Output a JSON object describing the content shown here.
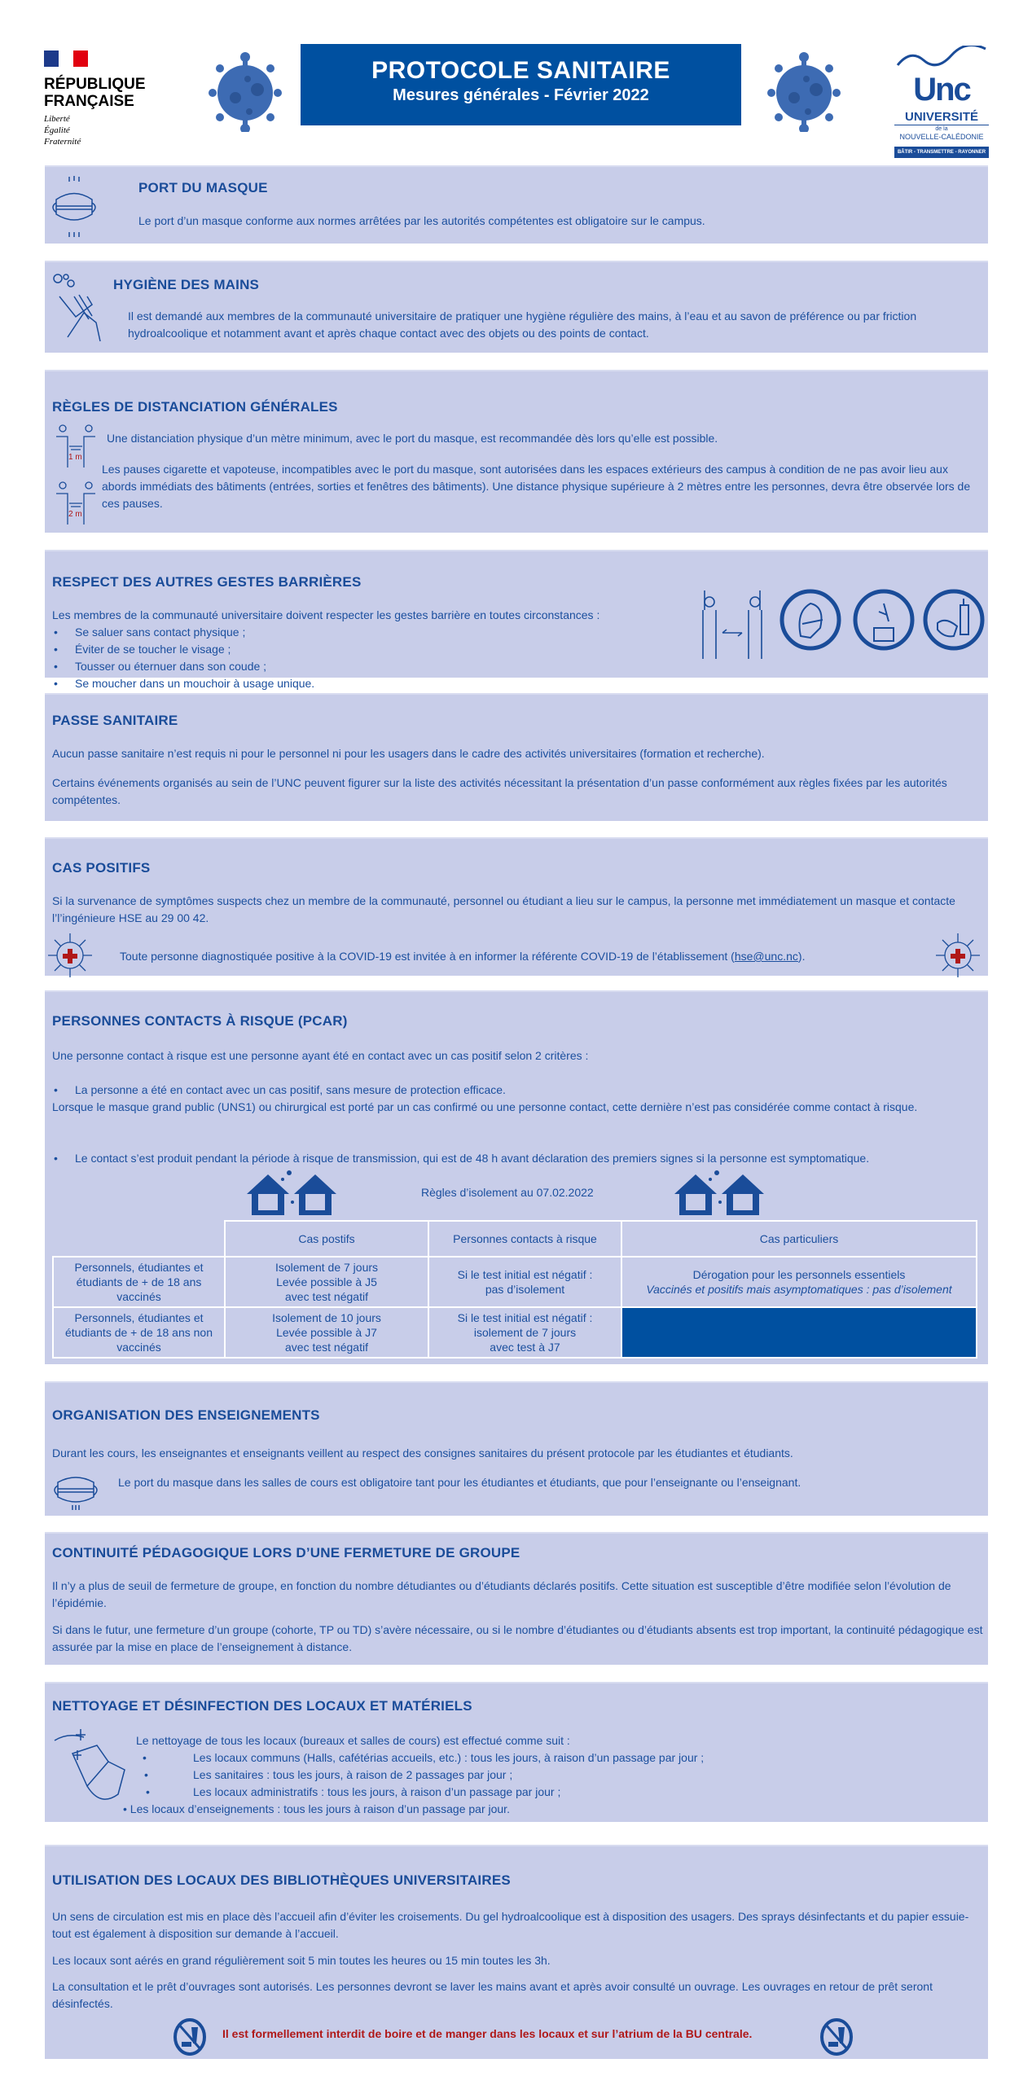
{
  "header": {
    "rf_title_line1": "RÉPUBLIQUE",
    "rf_title_line2": "FRANÇAISE",
    "rf_motto": [
      "Liberté",
      "Égalité",
      "Fraternité"
    ],
    "title": "PROTOCOLE SANITAIRE",
    "subtitle": "Mesures générales - Février 2022",
    "unc_logo": {
      "acronym": "Unc",
      "name": "UNIVERSITÉ",
      "de_la": "de la",
      "region": "NOUVELLE-CALÉDONIE",
      "tagline": "BÂTIR - TRANSMETTRE - RAYONNER"
    }
  },
  "colors": {
    "banner": "#0050a0",
    "section_bg": "#c8cde9",
    "text": "#1b4f9e",
    "alert": "#b01818"
  },
  "masque": {
    "title": "PORT DU MASQUE",
    "text": "Le port d’un masque conforme aux normes arrêtées par les autorités compétentes est obligatoire sur le campus."
  },
  "hygiene": {
    "title": "HYGIÈNE DES MAINS",
    "text": "Il est demandé aux membres de la communauté universitaire de pratiquer une hygiène régulière des mains, à l’eau et au savon de préférence ou par friction hydroalcoolique et notamment avant et après chaque contact avec des objets ou des points de contact."
  },
  "distanciation": {
    "title": "RÈGLES DE DISTANCIATION GÉNÉRALES",
    "label_1m": "1 m",
    "label_2m": "2 m",
    "text1": "Une distanciation physique d’un mètre minimum, avec le port du masque, est recommandée dès lors qu’elle est possible.",
    "text2": "Les pauses cigarette et vapoteuse, incompatibles avec le port du masque, sont autorisées dans les espaces extérieurs des campus à condition de ne pas avoir lieu aux abords immédiats des bâtiments (entrées, sorties et fenêtres des bâtiments). Une distance physique supérieure à 2 mètres entre les personnes, devra être observée lors de ces pauses."
  },
  "gestes": {
    "title": "RESPECT DES AUTRES GESTES BARRIÈRES",
    "intro": "Les membres de la communauté universitaire doivent respecter les gestes barrière en toutes circonstances :",
    "items": [
      "Se saluer sans contact physique ;",
      "Éviter de se toucher le visage ;",
      "Tousser ou éternuer dans son coude ;",
      "Se moucher dans un mouchoir à usage unique."
    ]
  },
  "passe": {
    "title": "PASSE SANITAIRE",
    "p1": "Aucun passe sanitaire n’est requis ni pour le personnel ni pour les usagers dans le cadre des activités universitaires (formation et recherche).",
    "p2": "Certains événements organisés au sein de l’UNC peuvent figurer sur la liste des activités nécessitant la présentation d’un passe conformément aux règles fixées par les autorités compétentes."
  },
  "positifs": {
    "title": "CAS POSITIFS",
    "p1": "Si la survenance de symptômes suspects chez un membre de la communauté, personnel ou étudiant a lieu sur le campus, la personne met immédiatement un masque et contacte l’l’ingénieure HSE au 29 00 42.",
    "p2_before": "Toute personne diagnostiquée positive à la COVID-19 est invitée à en informer la référente COVID-19 de l’établissement (",
    "email": "hse@unc.nc",
    "p2_after": ")."
  },
  "pcar": {
    "title": "PERSONNES CONTACTS À RISQUE (PCAR)",
    "intro": "Une personne contact à risque est une personne ayant été en contact avec un cas positif selon 2 critères :",
    "item1": "La personne a été en contact avec un cas positif, sans mesure de protection efficace.",
    "note": "Lorsque le masque grand public (UNS1) ou chirurgical est porté par un cas confirmé ou une personne contact, cette dernière n’est pas considérée comme contact à risque.",
    "item2": "Le contact s’est produit pendant la période à risque de transmission, qui est de 48 h avant déclaration des premiers signes si la personne est symptomatique.",
    "table_caption": "Règles d’isolement au 07.02.2022",
    "table": {
      "headers": [
        "",
        "Cas postifs",
        "Personnes contacts à risque",
        "Cas particuliers"
      ],
      "rows": [
        {
          "label": "Personnels, étudiantes et étudiants de + de 18 ans vaccinés",
          "positifs": [
            "Isolement de 7 jours",
            "Levée possible à J5",
            "avec test négatif"
          ],
          "contacts": [
            "Si le test initial est négatif :",
            "pas d’isolement"
          ],
          "particuliers": "Dérogation pour les personnels essentiels",
          "particuliers_italic": "Vaccinés et positifs mais asymptomatiques : pas d’isolement"
        },
        {
          "label": "Personnels, étudiantes et étudiants de + de 18 ans non vaccinés",
          "positifs": [
            "Isolement de 10 jours",
            "Levée possible à J7",
            "avec test négatif"
          ],
          "contacts": [
            "Si le test initial est négatif :",
            "isolement de 7 jours",
            "avec test à J7"
          ]
        }
      ]
    }
  },
  "organisation": {
    "title": "ORGANISATION DES ENSEIGNEMENTS",
    "p1": "Durant les cours, les enseignantes et enseignants veillent au respect des consignes sanitaires du présent protocole par les étudiantes et étudiants.",
    "p2": "Le port du masque dans les salles de cours est obligatoire tant pour les étudiantes et étudiants, que  pour l’enseignante ou l’enseignant."
  },
  "continuite": {
    "title": "CONTINUITÉ PÉDAGOGIQUE LORS D’UNE FERMETURE DE GROUPE",
    "p1": "Il n’y a plus de seuil de fermeture de groupe, en fonction du nombre détudiantes ou d’étudiants déclarés positifs. Cette situation est susceptible d’être modifiée selon l’évolution de l’épidémie.",
    "p2": "Si dans le futur, une fermeture d’un groupe (cohorte, TP ou TD) s’avère nécessaire, ou si le nombre d’étudiantes ou d’étudiants absents est trop important, la continuité pédagogique est assurée par la mise en place de l’enseignement à distance."
  },
  "nettoyage": {
    "title": "NETTOYAGE ET DÉSINFECTION DES LOCAUX ET MATÉRIELS",
    "intro": "Le nettoyage de tous les locaux (bureaux et salles de cours) est effectué  comme suit :",
    "items": [
      "Les locaux communs (Halls, cafétérias accueils, etc.) : tous les jours, à raison d’un passage par jour ;",
      "Les sanitaires : tous les jours, à raison de 2 passages par jour ;",
      "Les locaux administratifs : tous les jours, à raison d’un passage par jour ;"
    ],
    "last": "• Les locaux d’enseignements : tous les jours à raison d’un passage par jour."
  },
  "bu": {
    "title": "UTILISATION DES LOCAUX DES BIBLIOTHÈQUES UNIVERSITAIRES",
    "p1": "Un sens de circulation est mis en place dès l’accueil afin d’éviter les croisements. Du gel hydroalcoolique est à disposition des usagers. Des sprays désinfectants et du papier essuie-tout est également à disposition sur demande à l’accueil.",
    "p2": "Les locaux sont aérés en grand régulièrement soit 5 min toutes les heures ou 15 min toutes les 3h.",
    "p3": "La consultation et le prêt d’ouvrages sont autorisés. Les personnes devront se laver les mains avant et après avoir consulté un ouvrage. Les ouvrages en retour de prêt seront désinfectés.",
    "warning": "Il est formellement interdit de boire et de manger dans les locaux et sur l’atrium de la BU centrale."
  }
}
